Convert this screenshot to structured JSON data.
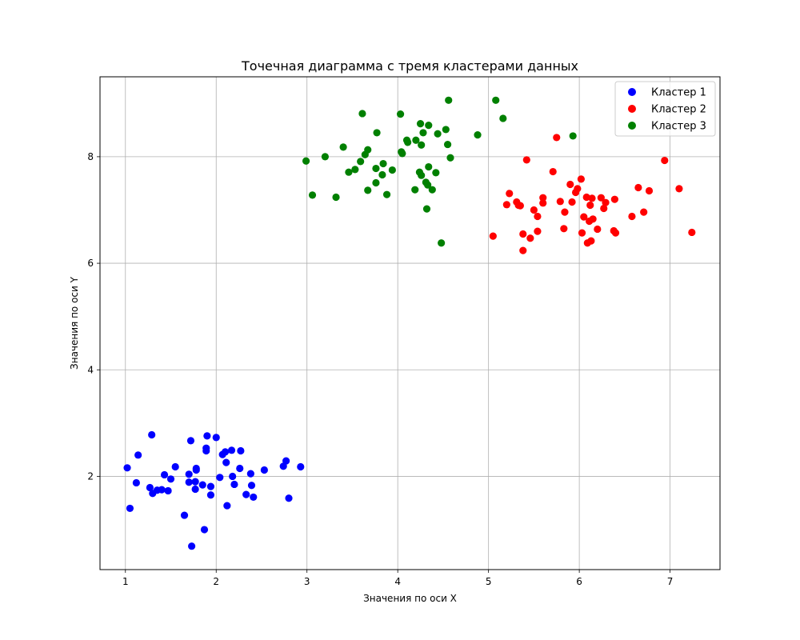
{
  "chart_data": {
    "type": "scatter",
    "title": "Точечная диаграмма с тремя кластерами данных",
    "xlabel": "Значения по оси X",
    "ylabel": "Значения по оси Y",
    "xlim": [
      0.72,
      7.55
    ],
    "ylim": [
      0.25,
      9.5
    ],
    "xticks": [
      1,
      2,
      3,
      4,
      5,
      6,
      7
    ],
    "yticks": [
      2,
      4,
      6,
      8
    ],
    "grid": true,
    "legend_position": "top-right",
    "series": [
      {
        "name": "Кластер 1",
        "color": "#0000ff",
        "points": [
          [
            1.02,
            2.16
          ],
          [
            1.05,
            1.4
          ],
          [
            1.12,
            1.88
          ],
          [
            1.14,
            2.4
          ],
          [
            1.27,
            1.79
          ],
          [
            1.29,
            2.78
          ],
          [
            1.3,
            1.68
          ],
          [
            1.35,
            1.74
          ],
          [
            1.4,
            1.75
          ],
          [
            1.43,
            2.03
          ],
          [
            1.47,
            1.73
          ],
          [
            1.5,
            1.95
          ],
          [
            1.55,
            2.18
          ],
          [
            1.65,
            1.27
          ],
          [
            1.7,
            1.89
          ],
          [
            1.7,
            2.04
          ],
          [
            1.72,
            2.67
          ],
          [
            1.73,
            0.69
          ],
          [
            1.77,
            1.76
          ],
          [
            1.77,
            1.9
          ],
          [
            1.78,
            2.12
          ],
          [
            1.78,
            2.15
          ],
          [
            1.85,
            1.84
          ],
          [
            1.87,
            1.0
          ],
          [
            1.89,
            2.48
          ],
          [
            1.89,
            2.53
          ],
          [
            1.9,
            2.76
          ],
          [
            1.94,
            1.65
          ],
          [
            1.94,
            1.81
          ],
          [
            2.0,
            2.73
          ],
          [
            2.04,
            1.98
          ],
          [
            2.07,
            2.41
          ],
          [
            2.1,
            2.46
          ],
          [
            2.11,
            2.26
          ],
          [
            2.12,
            1.45
          ],
          [
            2.17,
            2.49
          ],
          [
            2.18,
            2.0
          ],
          [
            2.2,
            1.85
          ],
          [
            2.26,
            2.15
          ],
          [
            2.27,
            2.48
          ],
          [
            2.33,
            1.66
          ],
          [
            2.38,
            2.05
          ],
          [
            2.39,
            1.83
          ],
          [
            2.41,
            1.61
          ],
          [
            2.53,
            2.12
          ],
          [
            2.74,
            2.19
          ],
          [
            2.77,
            2.29
          ],
          [
            2.8,
            1.59
          ],
          [
            2.93,
            2.18
          ]
        ]
      },
      {
        "name": "Кластер 2",
        "color": "#ff0000",
        "points": [
          [
            5.05,
            6.51
          ],
          [
            5.2,
            7.1
          ],
          [
            5.23,
            7.31
          ],
          [
            5.31,
            7.15
          ],
          [
            5.33,
            7.09
          ],
          [
            5.35,
            7.08
          ],
          [
            5.38,
            6.55
          ],
          [
            5.38,
            6.24
          ],
          [
            5.42,
            7.94
          ],
          [
            5.46,
            6.47
          ],
          [
            5.5,
            7.0
          ],
          [
            5.54,
            6.6
          ],
          [
            5.54,
            6.88
          ],
          [
            5.6,
            7.23
          ],
          [
            5.6,
            7.13
          ],
          [
            5.71,
            7.72
          ],
          [
            5.75,
            8.36
          ],
          [
            5.79,
            7.16
          ],
          [
            5.83,
            6.65
          ],
          [
            5.84,
            6.96
          ],
          [
            5.9,
            7.48
          ],
          [
            5.92,
            7.15
          ],
          [
            5.96,
            7.33
          ],
          [
            5.98,
            7.4
          ],
          [
            6.02,
            7.58
          ],
          [
            6.03,
            6.57
          ],
          [
            6.05,
            6.87
          ],
          [
            6.08,
            7.24
          ],
          [
            6.09,
            6.38
          ],
          [
            6.11,
            6.79
          ],
          [
            6.12,
            7.09
          ],
          [
            6.13,
            6.42
          ],
          [
            6.14,
            7.22
          ],
          [
            6.15,
            6.83
          ],
          [
            6.2,
            6.64
          ],
          [
            6.24,
            7.23
          ],
          [
            6.27,
            7.03
          ],
          [
            6.29,
            7.14
          ],
          [
            6.38,
            6.61
          ],
          [
            6.39,
            7.2
          ],
          [
            6.4,
            6.57
          ],
          [
            6.58,
            6.88
          ],
          [
            6.65,
            7.42
          ],
          [
            6.71,
            6.96
          ],
          [
            6.77,
            7.36
          ],
          [
            6.94,
            7.93
          ],
          [
            7.1,
            7.4
          ],
          [
            7.24,
            6.58
          ]
        ]
      },
      {
        "name": "Кластер 3",
        "color": "#008000",
        "points": [
          [
            2.99,
            7.92
          ],
          [
            3.06,
            7.28
          ],
          [
            3.2,
            8.0
          ],
          [
            3.32,
            7.24
          ],
          [
            3.4,
            8.18
          ],
          [
            3.46,
            7.71
          ],
          [
            3.53,
            7.76
          ],
          [
            3.59,
            7.91
          ],
          [
            3.61,
            8.81
          ],
          [
            3.64,
            8.04
          ],
          [
            3.67,
            8.13
          ],
          [
            3.67,
            7.37
          ],
          [
            3.76,
            7.78
          ],
          [
            3.76,
            7.51
          ],
          [
            3.77,
            8.45
          ],
          [
            3.83,
            7.66
          ],
          [
            3.84,
            7.87
          ],
          [
            3.88,
            7.29
          ],
          [
            3.94,
            7.75
          ],
          [
            4.03,
            8.8
          ],
          [
            4.04,
            8.09
          ],
          [
            4.05,
            8.06
          ],
          [
            4.1,
            8.31
          ],
          [
            4.11,
            8.27
          ],
          [
            4.19,
            7.38
          ],
          [
            4.2,
            8.31
          ],
          [
            4.24,
            7.71
          ],
          [
            4.25,
            8.62
          ],
          [
            4.26,
            7.65
          ],
          [
            4.26,
            8.22
          ],
          [
            4.28,
            8.45
          ],
          [
            4.31,
            7.52
          ],
          [
            4.32,
            7.02
          ],
          [
            4.33,
            7.47
          ],
          [
            4.34,
            8.59
          ],
          [
            4.34,
            7.81
          ],
          [
            4.38,
            7.38
          ],
          [
            4.42,
            7.7
          ],
          [
            4.44,
            8.43
          ],
          [
            4.48,
            6.38
          ],
          [
            4.53,
            8.51
          ],
          [
            4.55,
            8.23
          ],
          [
            4.56,
            9.06
          ],
          [
            4.58,
            7.98
          ],
          [
            4.88,
            8.41
          ],
          [
            5.08,
            9.06
          ],
          [
            5.16,
            8.72
          ],
          [
            5.93,
            8.39
          ]
        ]
      }
    ]
  }
}
